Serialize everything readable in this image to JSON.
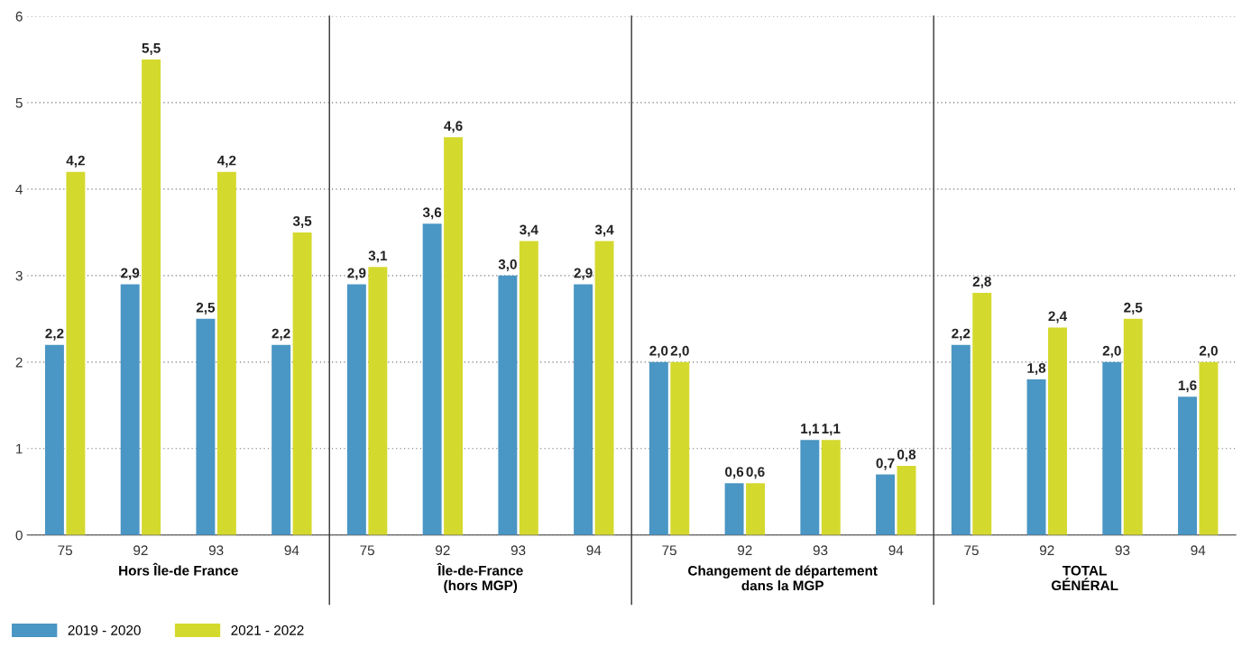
{
  "chart_data": {
    "type": "bar",
    "categories": [
      "75",
      "92",
      "93",
      "94",
      "75",
      "92",
      "93",
      "94",
      "75",
      "92",
      "93",
      "94",
      "75",
      "92",
      "93",
      "94"
    ],
    "series": [
      {
        "name": "2019 - 2020",
        "color": "#4a96c4",
        "values": [
          2.2,
          2.9,
          2.5,
          2.2,
          2.9,
          3.6,
          3.0,
          2.9,
          2.0,
          0.6,
          1.1,
          0.7,
          2.2,
          1.8,
          2.0,
          1.6
        ],
        "value_labels": [
          "2,2",
          "2,9",
          "2,5",
          "2,2",
          "2,9",
          "3,6",
          "3,0",
          "2,9",
          "2,0",
          "0,6",
          "1,1",
          "0,7",
          "2,2",
          "1,8",
          "2,0",
          "1,6"
        ]
      },
      {
        "name": "2021 - 2022",
        "color": "#d4d92e",
        "values": [
          4.2,
          5.5,
          4.2,
          3.5,
          3.1,
          4.6,
          3.4,
          3.4,
          2.0,
          0.6,
          1.1,
          0.8,
          2.8,
          2.4,
          2.5,
          2.0
        ],
        "value_labels": [
          "4,2",
          "5,5",
          "4,2",
          "3,5",
          "3,1",
          "4,6",
          "3,4",
          "3,4",
          "2,0",
          "0,6",
          "1,1",
          "0,8",
          "2,8",
          "2,4",
          "2,5",
          "2,0"
        ]
      }
    ],
    "annotations": [
      "Hors Île-de France",
      "Île-de-France\n(hors MGP)",
      "Changement de département\ndans la MGP",
      "TOTAL\nGÉNÉRAL"
    ],
    "ylim": [
      0,
      6
    ],
    "yticks": [
      0,
      1,
      2,
      3,
      4,
      5,
      6
    ],
    "grid": "y",
    "legend": "bottom left"
  }
}
